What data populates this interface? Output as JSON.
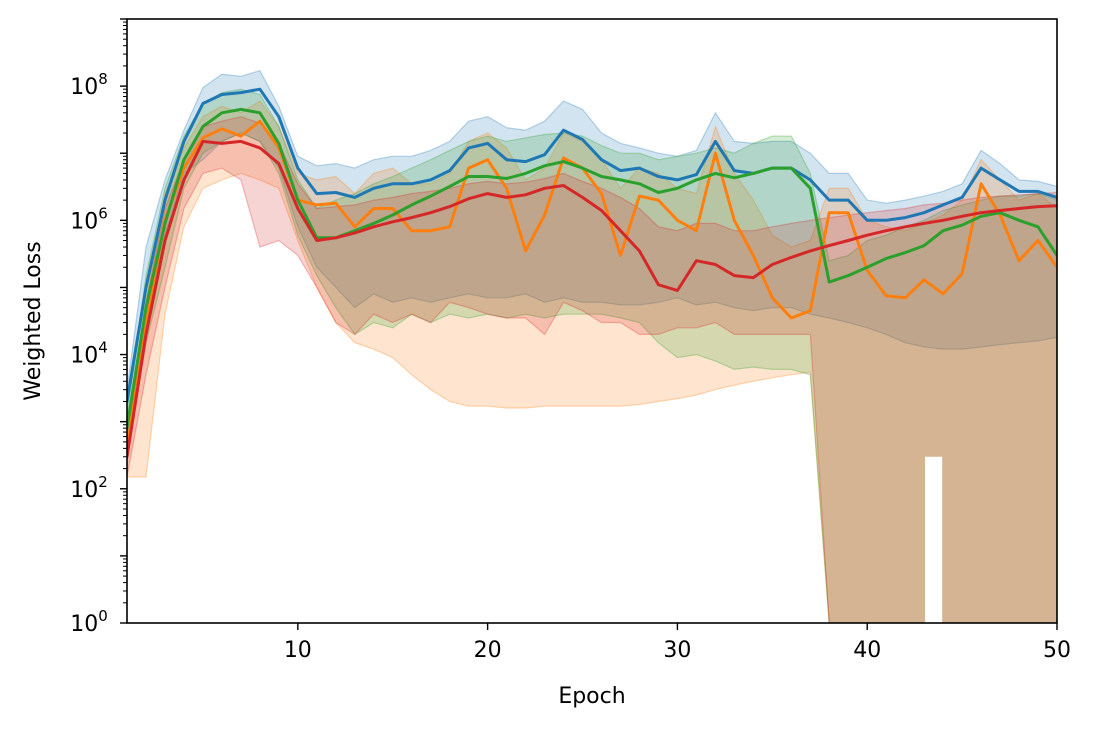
{
  "chart_data": {
    "type": "line",
    "title": "",
    "xlabel": "Epoch",
    "ylabel": "Weighted Loss",
    "xlim": [
      1,
      50
    ],
    "ylim": [
      1,
      1000000000
    ],
    "yscale": "log",
    "grid": false,
    "x_ticks": [
      10,
      20,
      30,
      40,
      50
    ],
    "x_tick_labels": [
      "10",
      "20",
      "30",
      "40",
      "50"
    ],
    "y_ticks": [
      1,
      100,
      10000,
      1000000,
      100000000
    ],
    "y_tick_labels": [
      {
        "base": "10",
        "exp": "0"
      },
      {
        "base": "10",
        "exp": "2"
      },
      {
        "base": "10",
        "exp": "4"
      },
      {
        "base": "10",
        "exp": "6"
      },
      {
        "base": "10",
        "exp": "8"
      }
    ],
    "series": [
      {
        "color": "#1f77b4",
        "x": [
          1,
          2,
          3,
          4,
          5,
          6,
          7,
          8,
          9,
          10,
          11,
          12,
          13,
          14,
          15,
          16,
          17,
          18,
          19,
          20,
          21,
          22,
          23,
          24,
          25,
          26,
          27,
          28,
          29,
          30,
          31,
          32,
          33,
          34,
          35,
          36,
          37,
          38,
          39,
          40,
          41,
          42,
          43,
          44,
          45,
          46,
          47,
          48,
          49,
          50
        ],
        "mean": [
          2000,
          100000,
          2000000,
          15000000,
          55000000,
          75000000,
          80000000,
          90000000,
          35000000,
          6000000,
          2500000,
          2600000,
          2200000,
          3000000,
          3500000,
          3500000,
          4000000,
          5500000,
          12000000,
          14000000,
          8000000,
          7500000,
          9500000,
          22000000,
          16000000,
          8000000,
          5500000,
          6000000,
          4500000,
          4000000,
          4800000,
          15000000,
          5500000,
          5000000,
          6000000,
          6000000,
          4000000,
          2000000,
          2000000,
          1000000,
          1000000,
          1100000,
          1300000,
          1700000,
          2200000,
          6000000,
          4000000,
          2700000,
          2700000,
          2200000
        ],
        "upper": [
          3000,
          400000,
          4000000,
          22000000,
          95000000,
          150000000,
          140000000,
          170000000,
          50000000,
          9000000,
          6500000,
          7000000,
          6000000,
          8000000,
          9000000,
          9000000,
          11000000,
          15000000,
          30000000,
          35000000,
          24000000,
          22000000,
          30000000,
          60000000,
          45000000,
          20000000,
          14000000,
          12000000,
          10000000,
          9000000,
          11000000,
          40000000,
          15000000,
          14000000,
          15000000,
          15000000,
          10000000,
          5000000,
          5000000,
          2000000,
          1800000,
          2000000,
          2300000,
          2700000,
          3500000,
          11000000,
          7000000,
          4000000,
          3800000,
          3200000
        ],
        "lower": [
          800,
          30000,
          600000,
          5000000,
          8000000,
          15000000,
          20000000,
          15000000,
          6000000,
          800000,
          200000,
          100000,
          50000,
          80000,
          60000,
          70000,
          60000,
          70000,
          80000,
          70000,
          70000,
          80000,
          60000,
          70000,
          60000,
          60000,
          55000,
          55000,
          60000,
          70000,
          55000,
          60000,
          50000,
          45000,
          50000,
          50000,
          40000,
          35000,
          30000,
          25000,
          20000,
          15000,
          13000,
          12000,
          12000,
          13000,
          14000,
          15000,
          16000,
          18000
        ]
      },
      {
        "color": "#ff7f0e",
        "x": [
          1,
          2,
          3,
          4,
          5,
          6,
          7,
          8,
          9,
          10,
          11,
          12,
          13,
          14,
          15,
          16,
          17,
          18,
          19,
          20,
          21,
          22,
          23,
          24,
          25,
          26,
          27,
          28,
          29,
          30,
          31,
          32,
          33,
          34,
          35,
          36,
          37,
          38,
          39,
          40,
          41,
          42,
          43,
          44,
          45,
          46,
          47,
          48,
          49,
          50
        ],
        "mean": [
          400,
          30000,
          1000000,
          6000000,
          17000000,
          23000000,
          18000000,
          30000000,
          12000000,
          2000000,
          1700000,
          1800000,
          800000,
          1500000,
          1500000,
          700000,
          700000,
          800000,
          6000000,
          8000000,
          3000000,
          350000,
          1200000,
          8500000,
          6000000,
          2500000,
          300000,
          2300000,
          2000000,
          1000000,
          700000,
          10000000,
          1000000,
          300000,
          70000,
          35000,
          45000,
          1300000,
          1300000,
          180000,
          75000,
          70000,
          130000,
          80000,
          160000,
          3500000,
          1200000,
          250000,
          500000,
          200000
        ],
        "upper": [
          600,
          60000,
          2500000,
          12000000,
          35000000,
          50000000,
          40000000,
          60000000,
          25000000,
          5000000,
          4000000,
          4500000,
          2500000,
          5000000,
          6000000,
          3500000,
          3500000,
          5000000,
          15000000,
          20000000,
          12000000,
          4000000,
          6000000,
          20000000,
          15000000,
          8000000,
          3000000,
          6000000,
          5000000,
          3000000,
          2500000,
          25000000,
          5000000,
          2000000,
          600000,
          400000,
          500000,
          3000000,
          3000000,
          1000000,
          800000,
          700000,
          900000,
          1200000,
          2000000,
          8000000,
          4000000,
          2000000,
          2500000,
          1500000
        ],
        "lower": [
          150,
          150,
          40000,
          800000,
          3000000,
          4000000,
          5000000,
          4000000,
          3000000,
          500000,
          100000,
          30000,
          15000,
          12000,
          9000,
          5000,
          3000,
          2000,
          1700,
          1700,
          1600,
          1600,
          1700,
          1700,
          1700,
          1700,
          1700,
          1800,
          2000,
          2200,
          2500,
          3000,
          3500,
          4000,
          4500,
          5000,
          5500,
          null,
          null,
          null,
          null,
          null,
          null,
          null,
          null,
          null,
          null,
          null,
          null,
          null
        ]
      },
      {
        "color": "#2ca02c",
        "x": [
          1,
          2,
          3,
          4,
          5,
          6,
          7,
          8,
          9,
          10,
          11,
          12,
          13,
          14,
          15,
          16,
          17,
          18,
          19,
          20,
          21,
          22,
          23,
          24,
          25,
          26,
          27,
          28,
          29,
          30,
          31,
          32,
          33,
          34,
          35,
          36,
          37,
          38,
          39,
          40,
          41,
          42,
          43,
          44,
          45,
          46,
          47,
          48,
          49,
          50
        ],
        "mean": [
          800,
          50000,
          900000,
          8000000,
          25000000,
          40000000,
          45000000,
          40000000,
          14000000,
          2000000,
          550000,
          550000,
          700000,
          900000,
          1200000,
          1700000,
          2300000,
          3200000,
          4500000,
          4500000,
          4200000,
          5000000,
          6500000,
          7500000,
          6000000,
          4500000,
          4000000,
          3500000,
          2600000,
          3000000,
          4000000,
          5000000,
          4300000,
          5000000,
          6000000,
          6000000,
          3000000,
          120000,
          150000,
          200000,
          270000,
          330000,
          420000,
          700000,
          850000,
          1150000,
          1300000,
          1000000,
          800000,
          300000
        ],
        "upper": [
          1200,
          150000,
          3000000,
          18000000,
          55000000,
          80000000,
          90000000,
          75000000,
          25000000,
          4000000,
          1500000,
          2000000,
          2500000,
          3500000,
          4500000,
          6000000,
          8000000,
          11000000,
          15000000,
          18000000,
          15000000,
          17000000,
          19000000,
          20000000,
          18000000,
          13000000,
          10000000,
          10000000,
          8000000,
          9000000,
          10000000,
          12000000,
          10000000,
          14000000,
          18000000,
          18000000,
          5000000,
          250000,
          300000,
          500000,
          600000,
          800000,
          1000000,
          1400000,
          1700000,
          2000000,
          2300000,
          2300000,
          2500000,
          2000000
        ],
        "lower": [
          300,
          15000,
          200000,
          3000000,
          10000000,
          15000000,
          20000000,
          15000000,
          5000000,
          600000,
          150000,
          50000,
          20000,
          30000,
          25000,
          40000,
          30000,
          40000,
          35000,
          40000,
          35000,
          40000,
          35000,
          40000,
          40000,
          40000,
          35000,
          30000,
          15000,
          9000,
          10000,
          8000,
          6000,
          6500,
          6000,
          6000,
          5000,
          1e-05,
          1e-05,
          1e-05,
          1e-05,
          1e-05,
          1e-05,
          1e-05,
          1e-05,
          1e-05,
          1e-05,
          1e-05,
          1e-05,
          1e-05
        ],
        "lower_extra": [
          [
            37,
            600
          ],
          [
            37.9,
            600
          ],
          [
            43,
            300
          ],
          [
            44,
            250
          ]
        ]
      },
      {
        "color": "#d62728",
        "x": [
          1,
          2,
          3,
          4,
          5,
          6,
          7,
          8,
          9,
          10,
          11,
          12,
          13,
          14,
          15,
          16,
          17,
          18,
          19,
          20,
          21,
          22,
          23,
          24,
          25,
          26,
          27,
          28,
          29,
          30,
          31,
          32,
          33,
          34,
          35,
          36,
          37,
          38,
          39,
          40,
          41,
          42,
          43,
          44,
          45,
          46,
          47,
          48,
          49,
          50
        ],
        "mean": [
          300,
          20000,
          500000,
          4000000,
          15000000,
          14000000,
          15000000,
          12000000,
          7000000,
          1500000,
          500000,
          550000,
          650000,
          800000,
          950000,
          1100000,
          1300000,
          1600000,
          2100000,
          2500000,
          2200000,
          2400000,
          3000000,
          3300000,
          2200000,
          1400000,
          700000,
          350000,
          110000,
          90000,
          250000,
          220000,
          150000,
          140000,
          220000,
          280000,
          350000,
          420000,
          500000,
          600000,
          700000,
          800000,
          900000,
          1000000,
          1150000,
          1300000,
          1400000,
          1500000,
          1600000,
          1650000
        ],
        "upper": [
          500,
          60000,
          1500000,
          8000000,
          25000000,
          30000000,
          35000000,
          28000000,
          14000000,
          3500000,
          1500000,
          1600000,
          1700000,
          2000000,
          2200000,
          2500000,
          2700000,
          3000000,
          3500000,
          3800000,
          3500000,
          3700000,
          4200000,
          5000000,
          3800000,
          3000000,
          2200000,
          1500000,
          800000,
          700000,
          900000,
          900000,
          700000,
          700000,
          800000,
          900000,
          1000000,
          1100000,
          1200000,
          1300000,
          1400000,
          1500000,
          1700000,
          1800000,
          2000000,
          2200000,
          2300000,
          2400000,
          2500000,
          2600000
        ],
        "lower": [
          150,
          5000,
          100000,
          1500000,
          5000000,
          6000000,
          4000000,
          400000,
          500000,
          300000,
          100000,
          30000,
          20000,
          40000,
          30000,
          40000,
          30000,
          60000,
          50000,
          40000,
          35000,
          35000,
          20000,
          60000,
          45000,
          30000,
          30000,
          20000,
          20000,
          25000,
          25000,
          30000,
          20000,
          20000,
          20000,
          20000,
          20000,
          null,
          null,
          null,
          null,
          null,
          null,
          null,
          null,
          null,
          null,
          null,
          null,
          null
        ]
      }
    ]
  }
}
